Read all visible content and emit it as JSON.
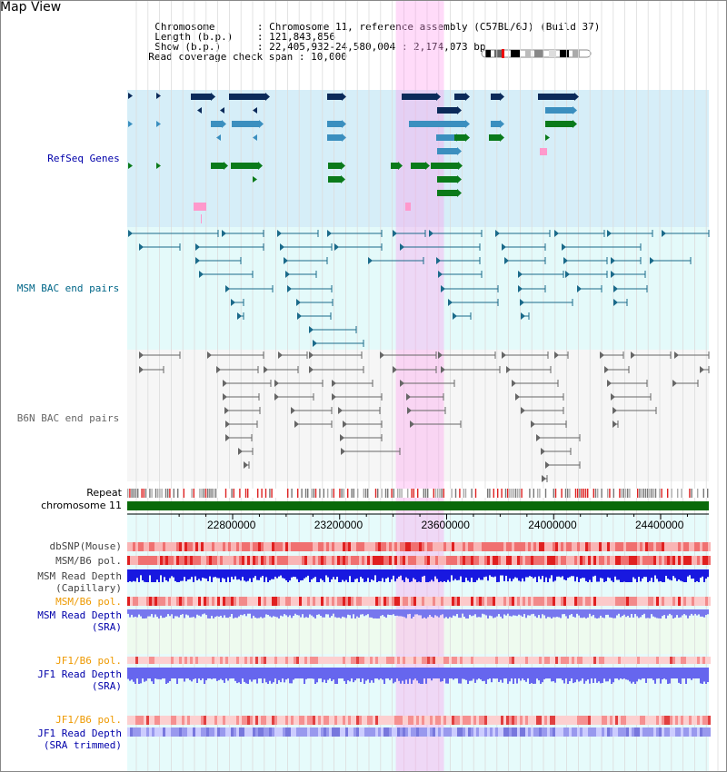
{
  "view": {
    "title": "Map View"
  },
  "info": {
    "rows": [
      {
        "key": "Chromosome      ",
        "value": "Chromosome 11, reference assembly (C57BL/6J) (Build 37)"
      },
      {
        "key": "Length (b.p.)   ",
        "value": "121,843,856"
      },
      {
        "key": "Show (b.p.)     ",
        "value": "22,405,932-24,580,004 : 2,174,073 bp"
      },
      {
        "key": "Read coverage check span",
        "value": "10,000"
      }
    ]
  },
  "tracks": {
    "refseq": {
      "label": "RefSeq Genes",
      "color": "#0000aa"
    },
    "msm_bac": {
      "label": "MSM BAC end pairs",
      "color": "#006688"
    },
    "b6n_bac": {
      "label": "B6N BAC end pairs",
      "color": "#666666"
    },
    "repeat": {
      "label": "Repeat"
    },
    "chrom": {
      "label": "chromosome 11"
    },
    "dbsnp": {
      "label": "dbSNP(Mouse)",
      "color": "#444444"
    },
    "msm_b6_pol_1": {
      "label": "MSM/B6 pol.",
      "color": "#444444"
    },
    "msm_depth_cap": {
      "label": "MSM Read Depth\n(Capillary)",
      "color": "#444444"
    },
    "msm_b6_pol_2": {
      "label": "MSM/B6 pol.",
      "color": "#ee9900"
    },
    "msm_depth_sra": {
      "label": "MSM Read Depth\n(SRA)",
      "color": "#0000aa"
    },
    "jf1_b6_pol_1": {
      "label": "JF1/B6 pol.",
      "color": "#ee9900"
    },
    "jf1_depth_sra": {
      "label": "JF1 Read Depth\n(SRA)",
      "color": "#0000aa"
    },
    "jf1_b6_pol_2": {
      "label": "JF1/B6 pol.",
      "color": "#ee9900"
    },
    "jf1_depth_trim": {
      "label": "JF1 Read Depth\n(SRA trimmed)",
      "color": "#0000aa"
    }
  },
  "axis": {
    "ticks": [
      {
        "value": 22800000,
        "label": "22800000"
      },
      {
        "value": 23200000,
        "label": "23200000"
      },
      {
        "value": 23600000,
        "label": "23600000"
      },
      {
        "value": 24000000,
        "label": "24000000"
      },
      {
        "value": 24400000,
        "label": "24400000"
      }
    ],
    "range": [
      22405932,
      24580004
    ]
  },
  "highlight": {
    "start": 23410000,
    "end": 23590000,
    "color": "#ffccee"
  }
}
